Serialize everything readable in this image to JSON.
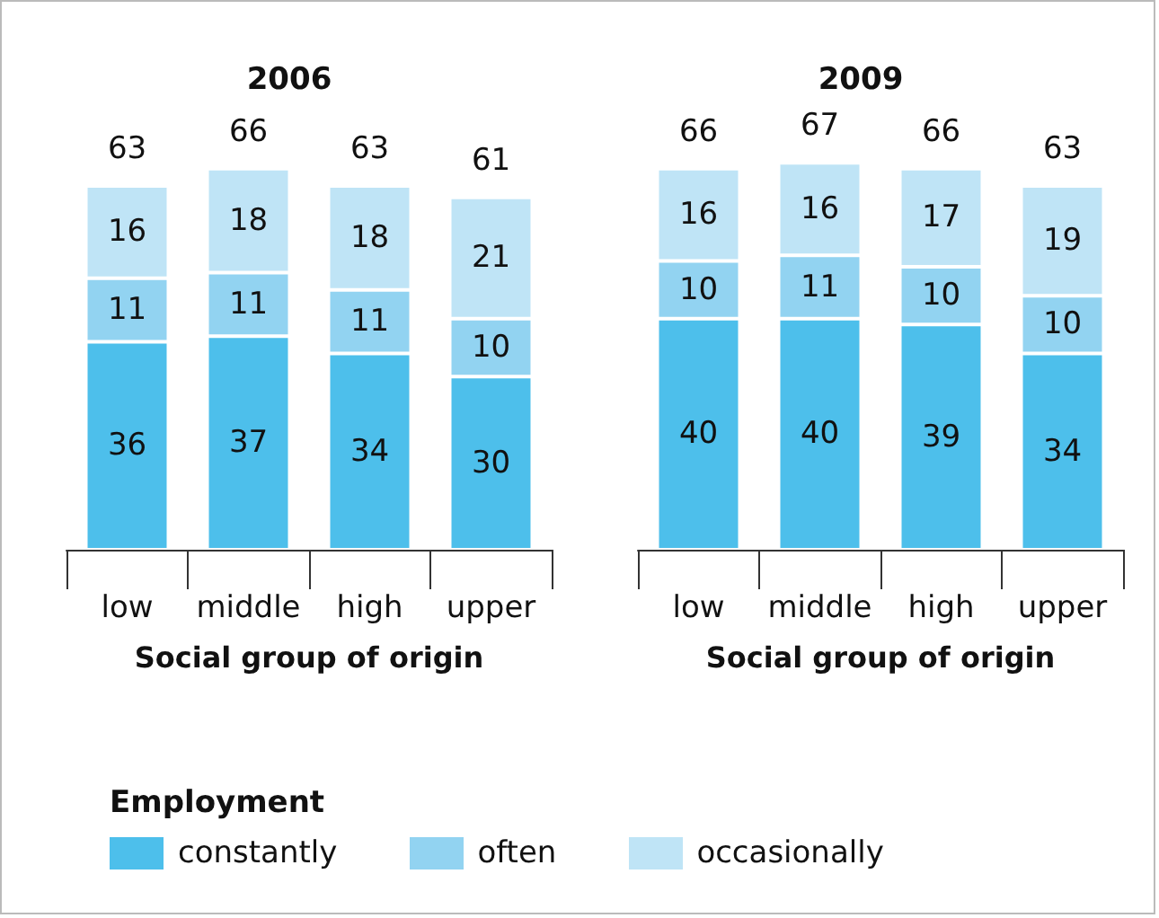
{
  "chart_data": [
    {
      "type": "bar",
      "stacked": true,
      "title": "2006",
      "xlabel": "Social group of origin",
      "categories": [
        "low",
        "middle",
        "high",
        "upper"
      ],
      "data_labels": true,
      "totals": [
        "63",
        "66",
        "63",
        "61"
      ],
      "legend": "bottom",
      "legend_title": "Employment",
      "series": [
        {
          "name": "constantly",
          "color": "#4dbfeb",
          "values": [
            36,
            37,
            34,
            30
          ]
        },
        {
          "name": "often",
          "color": "#92d3f1",
          "values": [
            11,
            11,
            11,
            10
          ]
        },
        {
          "name": "occasionally",
          "color": "#bfe4f6",
          "values": [
            16,
            18,
            18,
            21
          ]
        }
      ]
    },
    {
      "type": "bar",
      "stacked": true,
      "title": "2009",
      "xlabel": "Social group of origin",
      "categories": [
        "low",
        "middle",
        "high",
        "upper"
      ],
      "data_labels": true,
      "totals": [
        "66",
        "67",
        "66",
        "63"
      ],
      "series": [
        {
          "color": "#4dbfeb",
          "values": [
            40,
            40,
            39,
            34
          ]
        },
        {
          "color": "#92d3f1",
          "values": [
            10,
            11,
            10,
            10
          ]
        },
        {
          "color": "#bfe4f6",
          "values": [
            16,
            16,
            17,
            19
          ]
        }
      ]
    }
  ]
}
